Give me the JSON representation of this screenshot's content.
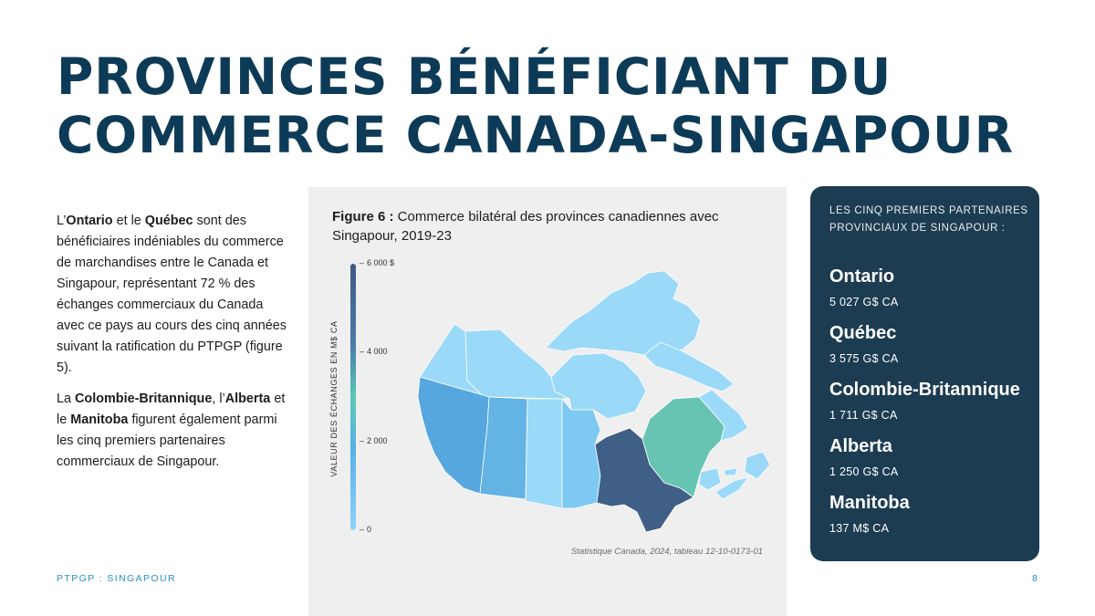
{
  "page": {
    "title_line1": "PROVINCES BÉNÉFICIANT DU",
    "title_line2": "COMMERCE CANADA-SINGAPOUR",
    "footer_label": "PTPGP : SINGAPOUR",
    "page_number": "8"
  },
  "body": {
    "p1": [
      {
        "text": "L’",
        "bold": false
      },
      {
        "text": "Ontario",
        "bold": true
      },
      {
        "text": " et le ",
        "bold": false
      },
      {
        "text": "Québec",
        "bold": true
      },
      {
        "text": " sont des bénéficiaires indéniables du commerce de marchandises entre le Canada et Singapour, représentant 72 % des échanges commerciaux du Canada avec ce pays au cours des cinq années suivant la ratification du PTPGP (figure 5).",
        "bold": false
      }
    ],
    "p2": [
      {
        "text": "La ",
        "bold": false
      },
      {
        "text": "Colombie-Britannique",
        "bold": true
      },
      {
        "text": ", l’",
        "bold": false
      },
      {
        "text": "Alberta",
        "bold": true
      },
      {
        "text": " et le ",
        "bold": false
      },
      {
        "text": "Manitoba",
        "bold": true
      },
      {
        "text": " figurent également parmi les cinq premiers partenaires commerciaux de Singapour.",
        "bold": false
      }
    ]
  },
  "figure": {
    "caption_bold": "Figure 6 :",
    "caption_rest": " Commerce bilatéral des provinces canadiennes avec Singapour, 2019-23",
    "source": "Statistique Canada, 2024, tableau 12-10-0173-01",
    "scale_title": "VALEUR DES ÉCHANGES EN M$ CA",
    "scale_ticks": [
      {
        "label": "6 000 $",
        "value": 6000
      },
      {
        "label": "4 000",
        "value": 4000
      },
      {
        "label": "2 000",
        "value": 2000
      },
      {
        "label": "0",
        "value": 0
      }
    ],
    "scale_max": 6000,
    "colors": {
      "ontario": "#3f5f86",
      "quebec": "#67c4b3",
      "british_columbia": "#56a7dd",
      "alberta": "#63b3e5",
      "manitoba": "#7ec9f2",
      "other": "#9bd9f9",
      "background": "#efefef"
    }
  },
  "panel": {
    "heading": "LES CINQ PREMIERS PARTENAIRES PROVINCIAUX DE SINGAPOUR :",
    "partners": [
      {
        "name": "Ontario",
        "value": "5 027 G$ CA"
      },
      {
        "name": "Québec",
        "value": "3 575 G$ CA"
      },
      {
        "name": "Colombie-Britannique",
        "value": "1 711 G$ CA"
      },
      {
        "name": "Alberta",
        "value": "1 250 G$ CA"
      },
      {
        "name": "Manitoba",
        "value": "137 M$ CA"
      }
    ]
  }
}
